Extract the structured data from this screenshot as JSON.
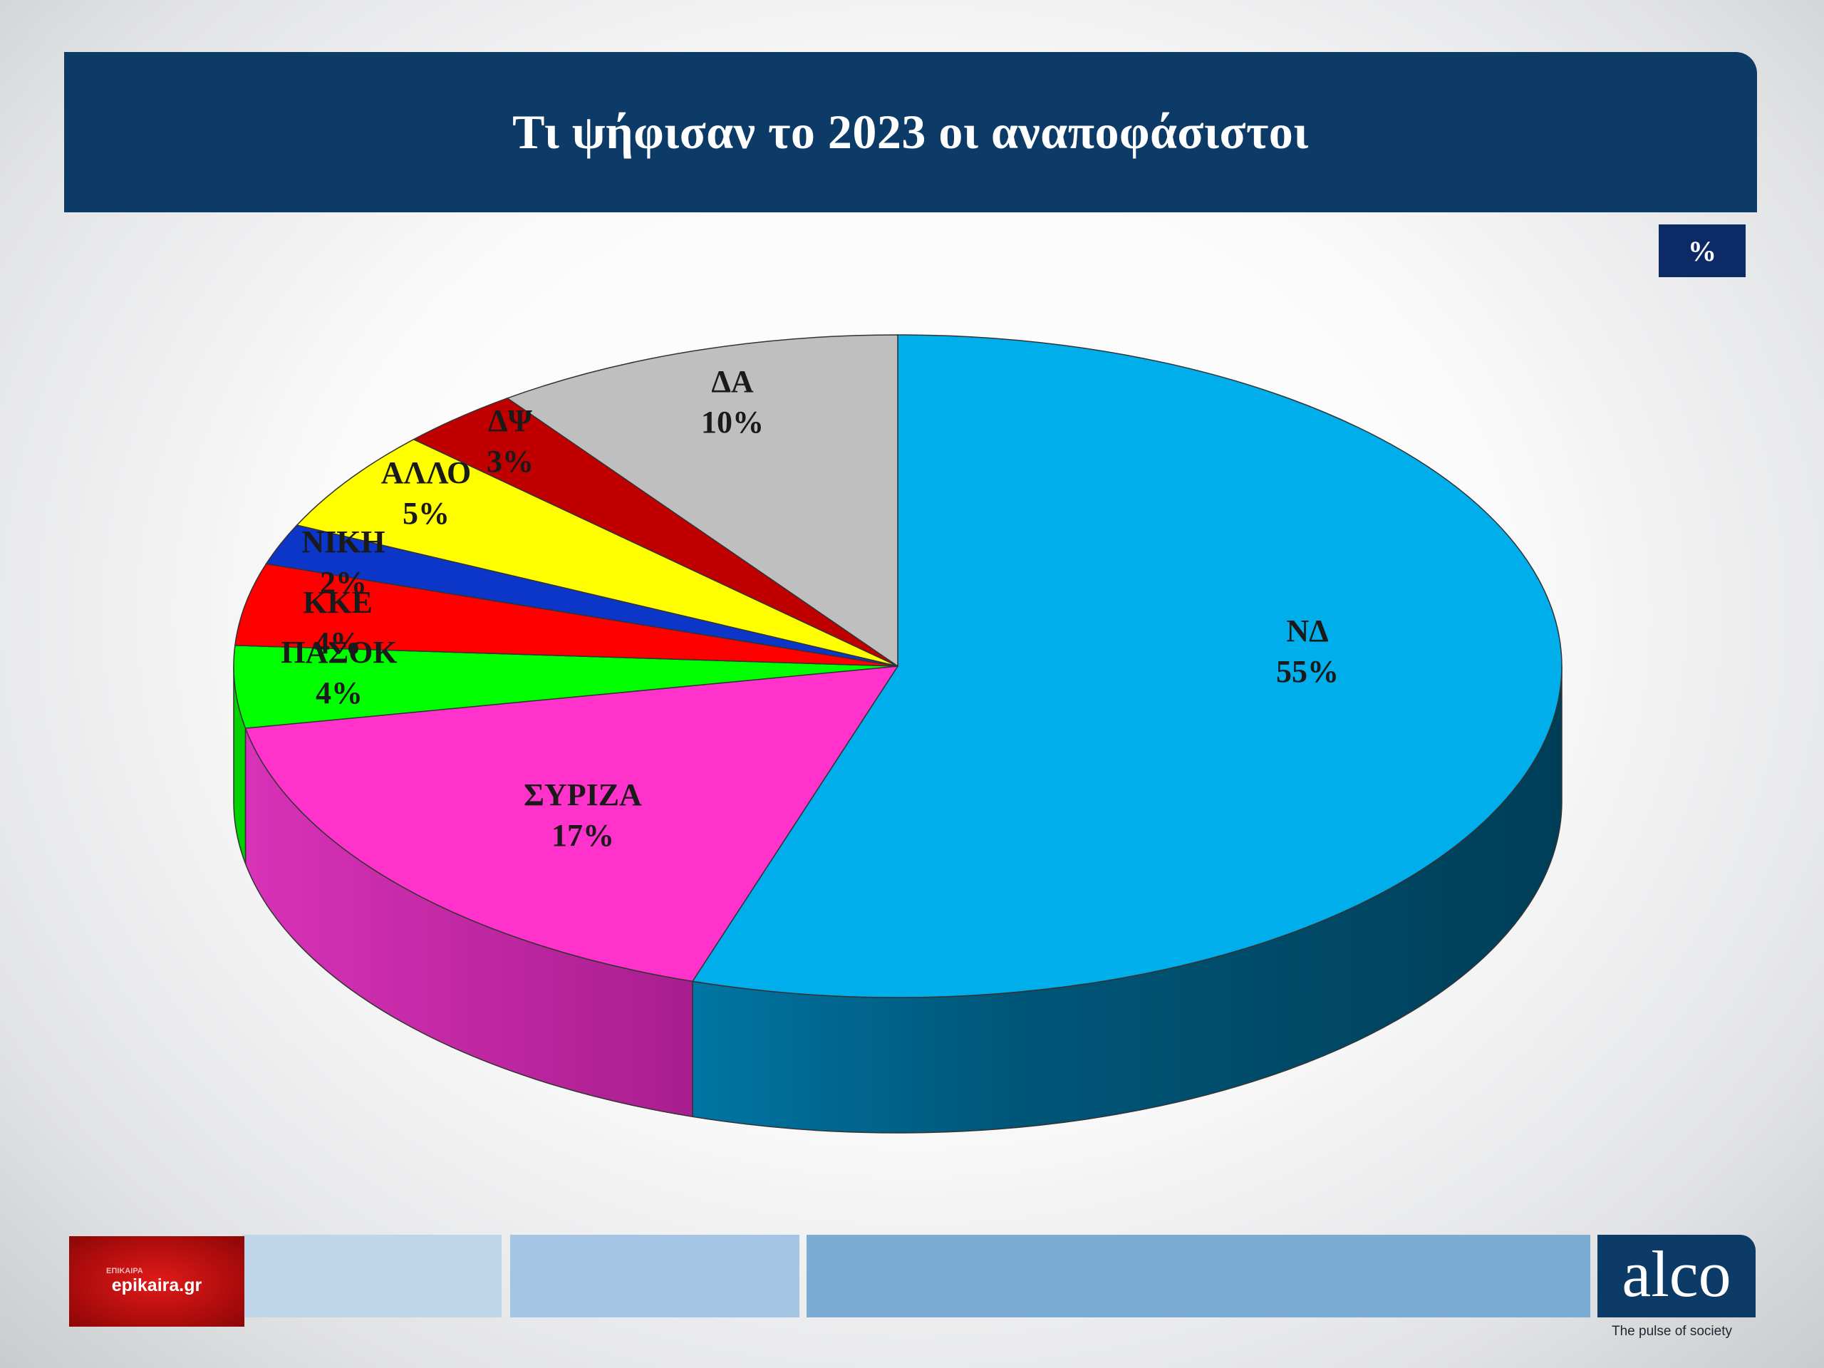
{
  "header": {
    "title": "Τι ψήφισαν το 2023 οι αναποφάσιστοι"
  },
  "unit_badge": "%",
  "chart_data": {
    "type": "pie",
    "title": "Τι ψήφισαν το 2023 οι αναποφάσιστοι",
    "unit": "%",
    "three_d": true,
    "slices": [
      {
        "label": "ΝΔ",
        "value": 55,
        "value_label": "55%",
        "color": "#00aeec"
      },
      {
        "label": "ΣΥΡΙΖΑ",
        "value": 17,
        "value_label": "17%",
        "color": "#ff33cc"
      },
      {
        "label": "ΠΑΣΟΚ",
        "value": 4,
        "value_label": "4%",
        "color": "#00ff00"
      },
      {
        "label": "ΚΚΕ",
        "value": 4,
        "value_label": "4%",
        "color": "#ff0000"
      },
      {
        "label": "ΝΙΚΗ",
        "value": 2,
        "value_label": "2%",
        "color": "#0b36c8"
      },
      {
        "label": "ΑΛΛΟ",
        "value": 5,
        "value_label": "5%",
        "color": "#ffff00"
      },
      {
        "label": "ΔΨ",
        "value": 3,
        "value_label": "3%",
        "color": "#c00000"
      },
      {
        "label": "ΔΑ",
        "value": 10,
        "value_label": "10%",
        "color": "#bfbfbf"
      }
    ]
  },
  "footer": {
    "left_logo_small": "ΕΠΙΚΑΙΡΑ",
    "left_logo": "epikaira.gr",
    "right_logo": "alco",
    "right_tagline": "The pulse of society"
  }
}
